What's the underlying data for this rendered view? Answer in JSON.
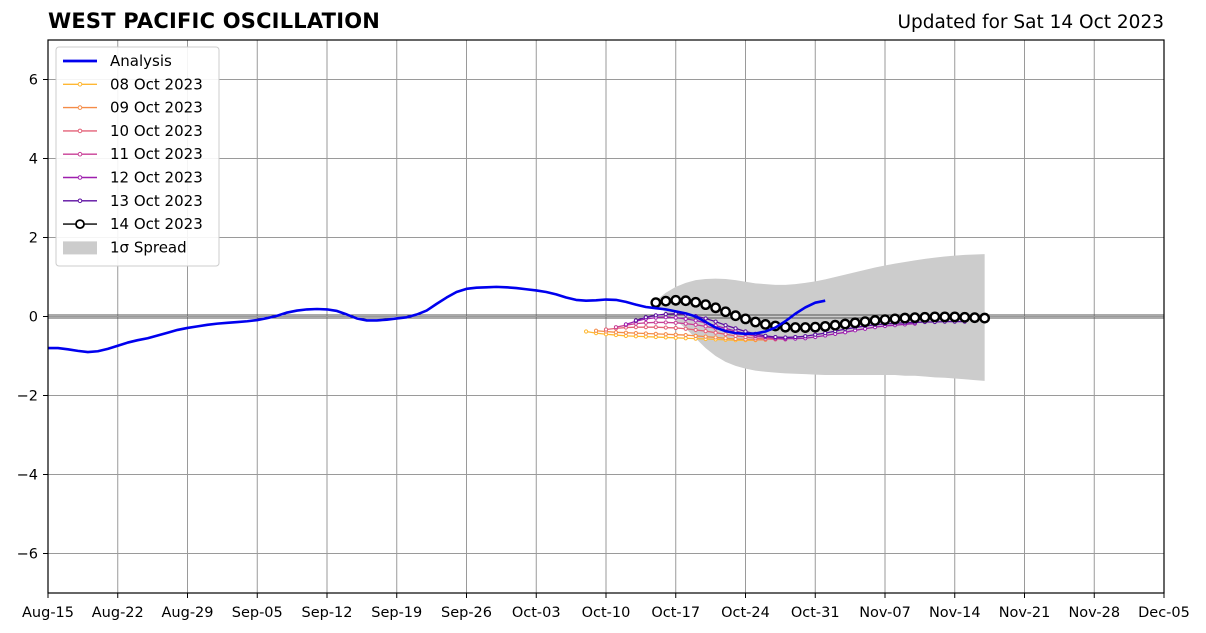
{
  "chart_data": {
    "type": "line",
    "title": "WEST PACIFIC OSCILLATION",
    "subtitle": "Updated for Sat 14 Oct 2023",
    "xlabel": "",
    "ylabel": "",
    "xlim": [
      "2023-08-15",
      "2023-12-05"
    ],
    "ylim": [
      -7,
      7
    ],
    "grid": true,
    "legend_position": "top-left",
    "x_ticks": [
      "Aug-15",
      "Aug-22",
      "Aug-29",
      "Sep-05",
      "Sep-12",
      "Sep-19",
      "Sep-26",
      "Oct-03",
      "Oct-10",
      "Oct-17",
      "Oct-24",
      "Oct-31",
      "Nov-07",
      "Nov-14",
      "Nov-21",
      "Nov-28",
      "Dec-05"
    ],
    "y_ticks": [
      "6",
      "4",
      "2",
      "0",
      "−2",
      "−4",
      "−6"
    ],
    "y_tick_values": [
      6,
      4,
      2,
      0,
      -2,
      -4,
      -6
    ],
    "analysis": {
      "name": "Analysis",
      "color": "#0000ee",
      "x_start": "2023-08-15",
      "values": [
        -0.8,
        -0.8,
        -0.83,
        -0.87,
        -0.9,
        -0.88,
        -0.82,
        -0.74,
        -0.66,
        -0.6,
        -0.55,
        -0.48,
        -0.41,
        -0.34,
        -0.29,
        -0.25,
        -0.21,
        -0.18,
        -0.16,
        -0.14,
        -0.12,
        -0.09,
        -0.04,
        0.02,
        0.1,
        0.15,
        0.18,
        0.19,
        0.18,
        0.14,
        0.05,
        -0.05,
        -0.1,
        -0.1,
        -0.08,
        -0.05,
        -0.02,
        0.05,
        0.15,
        0.32,
        0.48,
        0.62,
        0.7,
        0.73,
        0.74,
        0.75,
        0.74,
        0.72,
        0.69,
        0.66,
        0.62,
        0.56,
        0.48,
        0.42,
        0.4,
        0.41,
        0.43,
        0.42,
        0.37,
        0.3,
        0.24,
        0.21,
        0.18,
        0.13,
        0.08,
        0.0,
        -0.14,
        -0.28,
        -0.37,
        -0.42,
        -0.44,
        -0.43,
        -0.38,
        -0.28,
        -0.12,
        0.07,
        0.23,
        0.35,
        0.4
      ]
    },
    "forecasts": [
      {
        "name": "08 Oct 2023",
        "color": "#ffb732",
        "x_start": "2023-10-08",
        "values": [
          -0.38,
          -0.42,
          -0.45,
          -0.47,
          -0.49,
          -0.5,
          -0.51,
          -0.52,
          -0.53,
          -0.54,
          -0.55,
          -0.56,
          -0.57,
          -0.58,
          -0.59,
          -0.6,
          -0.6,
          -0.6
        ]
      },
      {
        "name": "09 Oct 2023",
        "color": "#f48c48",
        "x_start": "2023-10-09",
        "values": [
          -0.36,
          -0.38,
          -0.4,
          -0.41,
          -0.42,
          -0.43,
          -0.44,
          -0.45,
          -0.46,
          -0.47,
          -0.49,
          -0.51,
          -0.53,
          -0.55,
          -0.57,
          -0.58,
          -0.59,
          -0.59
        ]
      },
      {
        "name": "10 Oct 2023",
        "color": "#e36078",
        "x_start": "2023-10-10",
        "values": [
          -0.33,
          -0.3,
          -0.28,
          -0.27,
          -0.27,
          -0.27,
          -0.28,
          -0.29,
          -0.31,
          -0.34,
          -0.37,
          -0.41,
          -0.45,
          -0.49,
          -0.52,
          -0.55,
          -0.57,
          -0.58
        ]
      },
      {
        "name": "11 Oct 2023",
        "color": "#c83e96",
        "x_start": "2023-10-11",
        "values": [
          -0.27,
          -0.22,
          -0.18,
          -0.16,
          -0.15,
          -0.15,
          -0.16,
          -0.18,
          -0.21,
          -0.25,
          -0.3,
          -0.35,
          -0.4,
          -0.45,
          -0.5,
          -0.53,
          -0.56,
          -0.58
        ]
      },
      {
        "name": "12 Oct 2023",
        "color": "#9e1fae",
        "x_start": "2023-10-12",
        "values": [
          -0.2,
          -0.12,
          -0.06,
          -0.03,
          -0.02,
          -0.03,
          -0.06,
          -0.1,
          -0.16,
          -0.23,
          -0.3,
          -0.37,
          -0.43,
          -0.48,
          -0.52,
          -0.55,
          -0.56,
          -0.56,
          -0.55,
          -0.52,
          -0.48,
          -0.44,
          -0.4,
          -0.35,
          -0.31,
          -0.27,
          -0.24,
          -0.22,
          -0.2,
          -0.18
        ]
      },
      {
        "name": "13 Oct 2023",
        "color": "#5b0da0",
        "x_start": "2023-10-13",
        "values": [
          -0.1,
          -0.02,
          0.03,
          0.06,
          0.07,
          0.05,
          0.01,
          -0.05,
          -0.13,
          -0.22,
          -0.3,
          -0.38,
          -0.44,
          -0.49,
          -0.52,
          -0.53,
          -0.52,
          -0.5,
          -0.46,
          -0.42,
          -0.37,
          -0.32,
          -0.28,
          -0.24,
          -0.21,
          -0.19,
          -0.17,
          -0.16,
          -0.15,
          -0.14,
          -0.14,
          -0.13,
          -0.13,
          -0.13
        ]
      },
      {
        "name": "14 Oct 2023",
        "color": "#000000",
        "x_start": "2023-10-15",
        "values": [
          0.35,
          0.39,
          0.41,
          0.4,
          0.36,
          0.3,
          0.22,
          0.12,
          0.02,
          -0.06,
          -0.14,
          -0.2,
          -0.24,
          -0.27,
          -0.28,
          -0.28,
          -0.27,
          -0.25,
          -0.22,
          -0.19,
          -0.16,
          -0.13,
          -0.1,
          -0.08,
          -0.06,
          -0.04,
          -0.03,
          -0.02,
          -0.01,
          -0.01,
          -0.01,
          -0.02,
          -0.03,
          -0.04
        ]
      }
    ],
    "spread": {
      "name": "1σ Spread",
      "color": "#cccccc",
      "x_start": "2023-10-15",
      "upper": [
        0.4,
        0.6,
        0.75,
        0.85,
        0.92,
        0.95,
        0.96,
        0.95,
        0.92,
        0.88,
        0.84,
        0.82,
        0.8,
        0.8,
        0.82,
        0.85,
        0.89,
        0.94,
        1.0,
        1.06,
        1.12,
        1.18,
        1.24,
        1.29,
        1.34,
        1.38,
        1.42,
        1.46,
        1.49,
        1.52,
        1.54,
        1.56,
        1.57,
        1.58
      ],
      "lower": [
        0.3,
        0.1,
        -0.1,
        -0.3,
        -0.55,
        -0.8,
        -1.0,
        -1.15,
        -1.25,
        -1.32,
        -1.37,
        -1.4,
        -1.42,
        -1.44,
        -1.45,
        -1.46,
        -1.47,
        -1.48,
        -1.48,
        -1.48,
        -1.48,
        -1.48,
        -1.48,
        -1.48,
        -1.48,
        -1.5,
        -1.5,
        -1.52,
        -1.54,
        -1.55,
        -1.57,
        -1.59,
        -1.61,
        -1.63
      ]
    },
    "legend": [
      {
        "label": "Analysis",
        "kind": "thick-line",
        "color": "#0000ee"
      },
      {
        "label": "08 Oct 2023",
        "kind": "dot-line",
        "color": "#ffb732"
      },
      {
        "label": "09 Oct 2023",
        "kind": "dot-line",
        "color": "#f48c48"
      },
      {
        "label": "10 Oct 2023",
        "kind": "dot-line",
        "color": "#e36078"
      },
      {
        "label": "11 Oct 2023",
        "kind": "dot-line",
        "color": "#c83e96"
      },
      {
        "label": "12 Oct 2023",
        "kind": "dot-line",
        "color": "#9e1fae"
      },
      {
        "label": "13 Oct 2023",
        "kind": "dot-line",
        "color": "#5b0da0"
      },
      {
        "label": "14 Oct 2023",
        "kind": "circle-line",
        "color": "#000000"
      },
      {
        "label": "1σ Spread",
        "kind": "patch",
        "color": "#cccccc"
      }
    ]
  }
}
